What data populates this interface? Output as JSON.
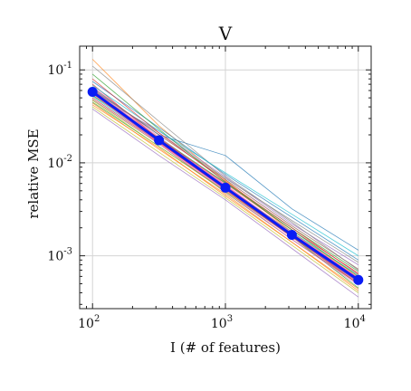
{
  "chart_data": {
    "type": "line",
    "title": "V",
    "xlabel": "I  (# of features)",
    "ylabel": "relative MSE",
    "x_scale": "log",
    "y_scale": "log",
    "xlim": [
      80,
      12500
    ],
    "ylim": [
      0.00027,
      0.18
    ],
    "x_ticks": [
      {
        "value": 100,
        "base": "10",
        "exp": "2"
      },
      {
        "value": 1000,
        "base": "10",
        "exp": "3"
      },
      {
        "value": 10000,
        "base": "10",
        "exp": "4"
      }
    ],
    "y_ticks": [
      {
        "value": 0.1,
        "base": "10",
        "exp": "-1"
      },
      {
        "value": 0.01,
        "base": "10",
        "exp": "-2"
      },
      {
        "value": 0.001,
        "base": "10",
        "exp": "-3"
      }
    ],
    "grid": true,
    "x": [
      100,
      316,
      1000,
      3162,
      10000
    ],
    "series": [
      {
        "values": [
          0.058,
          0.0175,
          0.0054,
          0.00168,
          0.00055
        ],
        "color": "#0a1cf5",
        "highlight": true
      }
    ],
    "background_lines": [
      {
        "color": "#1f77b4",
        "values": [
          0.062,
          0.02,
          0.012,
          0.0032,
          0.00115
        ]
      },
      {
        "color": "#ff7f0e",
        "values": [
          0.13,
          0.025,
          0.0065,
          0.0018,
          0.0006
        ]
      },
      {
        "color": "#2ca02c",
        "values": [
          0.045,
          0.015,
          0.005,
          0.0016,
          0.00045
        ]
      },
      {
        "color": "#d62728",
        "values": [
          0.07,
          0.018,
          0.006,
          0.0019,
          0.00065
        ]
      },
      {
        "color": "#9467bd",
        "values": [
          0.055,
          0.022,
          0.007,
          0.0022,
          0.0008
        ]
      },
      {
        "color": "#8c564b",
        "values": [
          0.048,
          0.016,
          0.0048,
          0.0015,
          0.0005
        ]
      },
      {
        "color": "#e377c2",
        "values": [
          0.066,
          0.019,
          0.0058,
          0.0017,
          0.00058
        ]
      },
      {
        "color": "#7f7f7f",
        "values": [
          0.06,
          0.021,
          0.0068,
          0.0024,
          0.00085
        ]
      },
      {
        "color": "#bcbd22",
        "values": [
          0.04,
          0.013,
          0.0042,
          0.0013,
          0.0004
        ]
      },
      {
        "color": "#17becf",
        "values": [
          0.052,
          0.017,
          0.0055,
          0.0018,
          0.00062
        ]
      },
      {
        "color": "#1f77b4",
        "values": [
          0.075,
          0.024,
          0.0075,
          0.0026,
          0.0009
        ]
      },
      {
        "color": "#ff7f0e",
        "values": [
          0.044,
          0.014,
          0.0046,
          0.0014,
          0.00044
        ]
      },
      {
        "color": "#2ca02c",
        "values": [
          0.09,
          0.023,
          0.0062,
          0.0019,
          0.0006
        ]
      },
      {
        "color": "#d62728",
        "values": [
          0.05,
          0.0165,
          0.0052,
          0.0016,
          0.0005
        ]
      },
      {
        "color": "#9467bd",
        "values": [
          0.038,
          0.012,
          0.004,
          0.0012,
          0.00036
        ]
      },
      {
        "color": "#8c564b",
        "values": [
          0.064,
          0.02,
          0.0066,
          0.0021,
          0.00072
        ]
      },
      {
        "color": "#e377c2",
        "values": [
          0.057,
          0.016,
          0.005,
          0.0015,
          0.00048
        ]
      },
      {
        "color": "#7f7f7f",
        "values": [
          0.11,
          0.028,
          0.0072,
          0.0023,
          0.0007
        ]
      },
      {
        "color": "#bcbd22",
        "values": [
          0.047,
          0.015,
          0.0049,
          0.0017,
          0.00056
        ]
      },
      {
        "color": "#17becf",
        "values": [
          0.068,
          0.022,
          0.0078,
          0.0028,
          0.001
        ]
      },
      {
        "color": "#2ca02c",
        "values": [
          0.053,
          0.0185,
          0.0061,
          0.002,
          0.00068
        ]
      },
      {
        "color": "#ff7f0e",
        "values": [
          0.042,
          0.0145,
          0.0044,
          0.0014,
          0.00042
        ]
      },
      {
        "color": "#1f77b4",
        "values": [
          0.059,
          0.017,
          0.0053,
          0.0016,
          0.00052
        ]
      },
      {
        "color": "#d62728",
        "values": [
          0.08,
          0.021,
          0.0063,
          0.002,
          0.00063
        ]
      }
    ]
  }
}
